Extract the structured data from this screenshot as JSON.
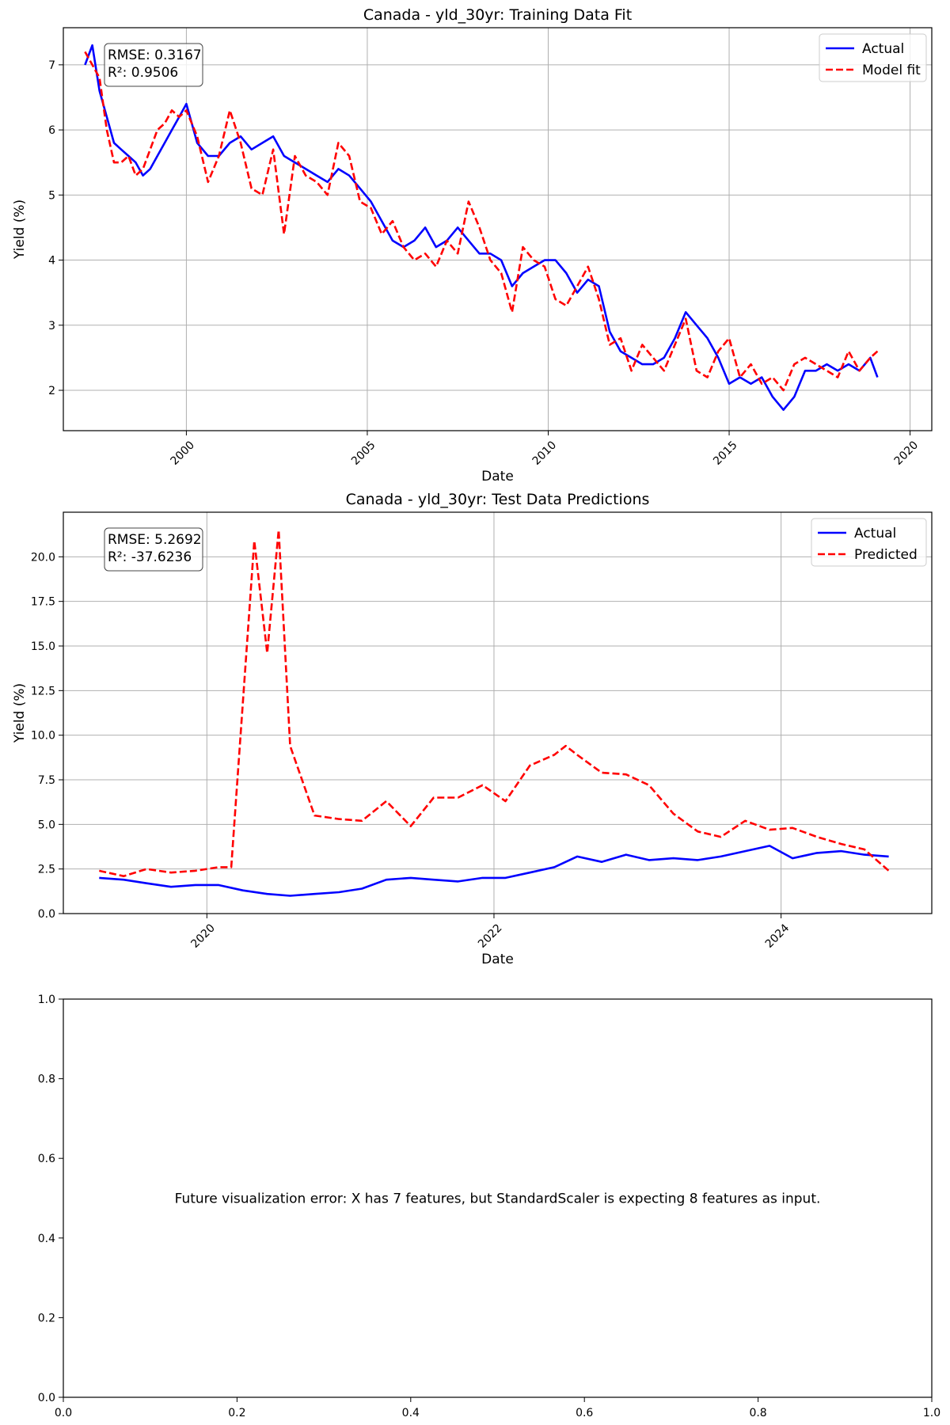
{
  "chart_data": [
    {
      "type": "line",
      "title": "Canada - yld_30yr: Training Data Fit",
      "xlabel": "Date",
      "ylabel": "Yield (%)",
      "x_ticks": [
        "2000",
        "2005",
        "2010",
        "2015",
        "2020"
      ],
      "y_ticks": [
        "2",
        "3",
        "4",
        "5",
        "6",
        "7"
      ],
      "xlim": [
        1996.6,
        2020.6
      ],
      "ylim": [
        1.38,
        7.57
      ],
      "grid": true,
      "legend_position": "top-right",
      "metrics": [
        "RMSE: 0.3167",
        "R²: 0.9506"
      ],
      "series": [
        {
          "name": "Actual",
          "color": "#0000ff",
          "style": "solid",
          "x": [
            1997.2,
            1997.4,
            1997.6,
            1997.8,
            1998.0,
            1998.2,
            1998.4,
            1998.6,
            1998.8,
            1999.0,
            1999.2,
            1999.4,
            1999.6,
            1999.8,
            2000.0,
            2000.3,
            2000.6,
            2000.9,
            2001.2,
            2001.5,
            2001.8,
            2002.1,
            2002.4,
            2002.7,
            2003.0,
            2003.3,
            2003.6,
            2003.9,
            2004.2,
            2004.5,
            2004.8,
            2005.1,
            2005.4,
            2005.7,
            2006.0,
            2006.3,
            2006.6,
            2006.9,
            2007.2,
            2007.5,
            2007.8,
            2008.1,
            2008.4,
            2008.7,
            2009.0,
            2009.3,
            2009.6,
            2009.9,
            2010.2,
            2010.5,
            2010.8,
            2011.1,
            2011.4,
            2011.7,
            2012.0,
            2012.3,
            2012.6,
            2012.9,
            2013.2,
            2013.5,
            2013.8,
            2014.1,
            2014.4,
            2014.7,
            2015.0,
            2015.3,
            2015.6,
            2015.9,
            2016.2,
            2016.5,
            2016.8,
            2017.1,
            2017.4,
            2017.7,
            2018.0,
            2018.3,
            2018.6,
            2018.9,
            2019.1
          ],
          "values": [
            7.0,
            7.3,
            6.6,
            6.2,
            5.8,
            5.7,
            5.6,
            5.5,
            5.3,
            5.4,
            5.6,
            5.8,
            6.0,
            6.2,
            6.4,
            5.8,
            5.6,
            5.6,
            5.8,
            5.9,
            5.7,
            5.8,
            5.9,
            5.6,
            5.5,
            5.4,
            5.3,
            5.2,
            5.4,
            5.3,
            5.1,
            4.9,
            4.6,
            4.3,
            4.2,
            4.3,
            4.5,
            4.2,
            4.3,
            4.5,
            4.3,
            4.1,
            4.1,
            4.0,
            3.6,
            3.8,
            3.9,
            4.0,
            4.0,
            3.8,
            3.5,
            3.7,
            3.6,
            2.9,
            2.6,
            2.5,
            2.4,
            2.4,
            2.5,
            2.8,
            3.2,
            3.0,
            2.8,
            2.5,
            2.1,
            2.2,
            2.1,
            2.2,
            1.9,
            1.7,
            1.9,
            2.3,
            2.3,
            2.4,
            2.3,
            2.4,
            2.3,
            2.5,
            2.2
          ]
        },
        {
          "name": "Model fit",
          "color": "#ff0000",
          "style": "dashed",
          "x": [
            1997.2,
            1997.4,
            1997.6,
            1997.8,
            1998.0,
            1998.2,
            1998.4,
            1998.6,
            1998.8,
            1999.0,
            1999.2,
            1999.4,
            1999.6,
            1999.8,
            2000.0,
            2000.3,
            2000.6,
            2000.9,
            2001.2,
            2001.5,
            2001.8,
            2002.1,
            2002.4,
            2002.7,
            2003.0,
            2003.3,
            2003.6,
            2003.9,
            2004.2,
            2004.5,
            2004.8,
            2005.1,
            2005.4,
            2005.7,
            2006.0,
            2006.3,
            2006.6,
            2006.9,
            2007.2,
            2007.5,
            2007.8,
            2008.1,
            2008.4,
            2008.7,
            2009.0,
            2009.3,
            2009.6,
            2009.9,
            2010.2,
            2010.5,
            2010.8,
            2011.1,
            2011.4,
            2011.7,
            2012.0,
            2012.3,
            2012.6,
            2012.9,
            2013.2,
            2013.5,
            2013.8,
            2014.1,
            2014.4,
            2014.7,
            2015.0,
            2015.3,
            2015.6,
            2015.9,
            2016.2,
            2016.5,
            2016.8,
            2017.1,
            2017.4,
            2017.7,
            2018.0,
            2018.3,
            2018.6,
            2018.9,
            2019.1
          ],
          "values": [
            7.2,
            7.0,
            6.8,
            6.0,
            5.5,
            5.5,
            5.6,
            5.3,
            5.4,
            5.7,
            6.0,
            6.1,
            6.3,
            6.2,
            6.3,
            5.9,
            5.2,
            5.6,
            6.3,
            5.8,
            5.1,
            5.0,
            5.7,
            4.4,
            5.6,
            5.3,
            5.2,
            5.0,
            5.8,
            5.6,
            4.9,
            4.8,
            4.4,
            4.6,
            4.2,
            4.0,
            4.1,
            3.9,
            4.3,
            4.1,
            4.9,
            4.5,
            4.0,
            3.8,
            3.2,
            4.2,
            4.0,
            3.9,
            3.4,
            3.3,
            3.6,
            3.9,
            3.4,
            2.7,
            2.8,
            2.3,
            2.7,
            2.5,
            2.3,
            2.7,
            3.1,
            2.3,
            2.2,
            2.6,
            2.8,
            2.2,
            2.4,
            2.1,
            2.2,
            2.0,
            2.4,
            2.5,
            2.4,
            2.3,
            2.2,
            2.6,
            2.3,
            2.5,
            2.6
          ]
        }
      ]
    },
    {
      "type": "line",
      "title": "Canada - yld_30yr: Test Data Predictions",
      "xlabel": "Date",
      "ylabel": "Yield (%)",
      "x_ticks": [
        "2020",
        "2022",
        "2024"
      ],
      "y_ticks": [
        "0.0",
        "2.5",
        "5.0",
        "7.5",
        "10.0",
        "12.5",
        "15.0",
        "17.5",
        "20.0"
      ],
      "xlim": [
        2019.0,
        2025.05
      ],
      "ylim": [
        0,
        22.5
      ],
      "grid": true,
      "legend_position": "top-right",
      "metrics": [
        "RMSE: 5.2692",
        "R²: -37.6236"
      ],
      "series": [
        {
          "name": "Actual",
          "color": "#0000ff",
          "style": "solid",
          "x": [
            2019.25,
            2019.42,
            2019.58,
            2019.75,
            2019.92,
            2020.08,
            2020.25,
            2020.42,
            2020.58,
            2020.75,
            2020.92,
            2021.08,
            2021.25,
            2021.42,
            2021.58,
            2021.75,
            2021.92,
            2022.08,
            2022.25,
            2022.42,
            2022.58,
            2022.75,
            2022.92,
            2023.08,
            2023.25,
            2023.42,
            2023.58,
            2023.75,
            2023.92,
            2024.08,
            2024.25,
            2024.42,
            2024.58,
            2024.75
          ],
          "values": [
            2.0,
            1.9,
            1.7,
            1.5,
            1.6,
            1.6,
            1.3,
            1.1,
            1.0,
            1.1,
            1.2,
            1.4,
            1.9,
            2.0,
            1.9,
            1.8,
            2.0,
            2.0,
            2.3,
            2.6,
            3.2,
            2.9,
            3.3,
            3.0,
            3.1,
            3.0,
            3.2,
            3.5,
            3.8,
            3.1,
            3.4,
            3.5,
            3.3,
            3.2
          ]
        },
        {
          "name": "Predicted",
          "color": "#ff0000",
          "style": "dashed",
          "x": [
            2019.25,
            2019.42,
            2019.58,
            2019.75,
            2019.92,
            2020.08,
            2020.17,
            2020.33,
            2020.42,
            2020.5,
            2020.58,
            2020.75,
            2020.92,
            2021.08,
            2021.25,
            2021.42,
            2021.58,
            2021.75,
            2021.92,
            2022.08,
            2022.25,
            2022.42,
            2022.5,
            2022.58,
            2022.75,
            2022.92,
            2023.08,
            2023.25,
            2023.42,
            2023.58,
            2023.75,
            2023.92,
            2024.08,
            2024.25,
            2024.42,
            2024.58,
            2024.75
          ],
          "values": [
            2.4,
            2.1,
            2.5,
            2.3,
            2.4,
            2.6,
            2.6,
            20.9,
            14.6,
            21.5,
            9.4,
            5.5,
            5.3,
            5.2,
            6.3,
            4.9,
            6.5,
            6.5,
            7.2,
            6.3,
            8.3,
            8.9,
            9.4,
            8.9,
            7.9,
            7.8,
            7.2,
            5.6,
            4.6,
            4.3,
            5.2,
            4.7,
            4.8,
            4.3,
            3.9,
            3.6,
            2.4
          ]
        }
      ]
    },
    {
      "type": "line",
      "xlim": [
        0,
        1
      ],
      "ylim": [
        0,
        1
      ],
      "x_ticks": [
        "0.0",
        "0.2",
        "0.4",
        "0.6",
        "0.8",
        "1.0"
      ],
      "y_ticks": [
        "0.0",
        "0.2",
        "0.4",
        "0.6",
        "0.8",
        "1.0"
      ],
      "grid": false,
      "annotation": "Future visualization error: X has 7 features, but StandardScaler is expecting 8 features as input.",
      "series": []
    }
  ]
}
